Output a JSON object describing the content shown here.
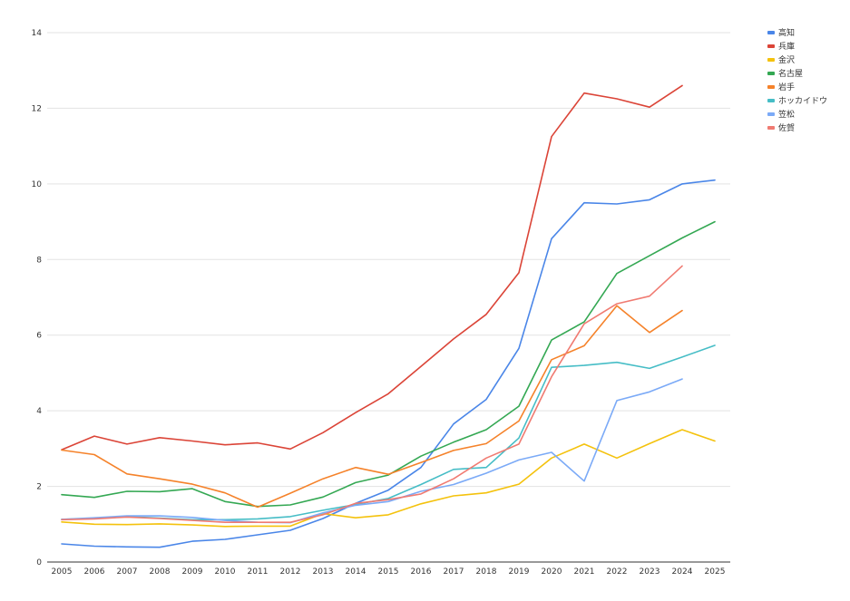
{
  "chart_data": {
    "type": "line",
    "title": "",
    "xlabel": "",
    "ylabel": "",
    "x": [
      2005,
      2006,
      2007,
      2008,
      2009,
      2010,
      2011,
      2012,
      2013,
      2014,
      2015,
      2016,
      2017,
      2018,
      2019,
      2020,
      2021,
      2022,
      2023,
      2024,
      2025
    ],
    "x_tick_labels": [
      "2005",
      "2006",
      "2007",
      "2008",
      "2009",
      "2010",
      "2011",
      "2012",
      "2013",
      "2014",
      "2015",
      "2016",
      "2017",
      "2018",
      "2019",
      "2020",
      "2021",
      "2022",
      "2023",
      "2024",
      "2025"
    ],
    "ylim": [
      0,
      14
    ],
    "y_ticks": [
      0,
      2,
      4,
      6,
      8,
      10,
      12,
      14
    ],
    "grid": true,
    "legend_position": "top-right",
    "series": [
      {
        "name": "高知",
        "color": "#4a86e8",
        "values": [
          0.48,
          0.42,
          0.4,
          0.39,
          0.55,
          0.6,
          0.72,
          0.84,
          1.15,
          1.55,
          1.9,
          2.5,
          3.65,
          4.3,
          5.65,
          8.55,
          9.5,
          9.47,
          9.58,
          10.0,
          10.1
        ]
      },
      {
        "name": "兵庫",
        "color": "#db4437",
        "values": [
          2.97,
          3.33,
          3.12,
          3.29,
          3.2,
          3.1,
          3.15,
          2.99,
          3.42,
          3.95,
          4.45,
          5.17,
          5.9,
          6.55,
          7.65,
          11.25,
          12.4,
          12.25,
          12.03,
          12.6,
          null
        ]
      },
      {
        "name": "金沢",
        "color": "#f4c20d",
        "values": [
          1.06,
          1.0,
          0.99,
          1.01,
          0.98,
          0.94,
          0.95,
          0.95,
          1.28,
          1.17,
          1.25,
          1.54,
          1.75,
          1.83,
          2.06,
          2.75,
          3.12,
          2.75,
          3.13,
          3.5,
          3.2
        ]
      },
      {
        "name": "名古屋",
        "color": "#34a853",
        "values": [
          1.78,
          1.71,
          1.87,
          1.86,
          1.94,
          1.6,
          1.47,
          1.51,
          1.72,
          2.1,
          2.3,
          2.8,
          3.17,
          3.5,
          4.12,
          5.87,
          6.35,
          7.63,
          8.1,
          8.57,
          9.0
        ]
      },
      {
        "name": "岩手",
        "color": "#f5822a",
        "values": [
          2.96,
          2.84,
          2.33,
          2.2,
          2.06,
          1.83,
          1.45,
          1.82,
          2.2,
          2.5,
          2.32,
          2.63,
          2.95,
          3.13,
          3.73,
          5.35,
          5.72,
          6.78,
          6.07,
          6.65,
          null
        ]
      },
      {
        "name": "ホッカイドウ",
        "color": "#46bdc6",
        "values": [
          1.13,
          1.15,
          1.2,
          1.16,
          1.12,
          1.12,
          1.14,
          1.2,
          1.37,
          1.52,
          1.68,
          2.05,
          2.45,
          2.5,
          3.28,
          5.15,
          5.2,
          5.28,
          5.12,
          5.42,
          5.73
        ]
      },
      {
        "name": "笠松",
        "color": "#7baaf7",
        "values": [
          1.13,
          1.17,
          1.22,
          1.22,
          1.18,
          1.1,
          1.05,
          1.04,
          1.3,
          1.5,
          1.6,
          1.87,
          2.05,
          2.35,
          2.7,
          2.9,
          2.14,
          4.27,
          4.5,
          4.84,
          null
        ]
      },
      {
        "name": "佐賀",
        "color": "#f07b72",
        "values": [
          1.12,
          1.14,
          1.19,
          1.15,
          1.1,
          1.05,
          1.05,
          1.05,
          1.25,
          1.55,
          1.65,
          1.8,
          2.2,
          2.75,
          3.12,
          4.9,
          6.3,
          6.83,
          7.03,
          7.83,
          null
        ]
      }
    ]
  }
}
